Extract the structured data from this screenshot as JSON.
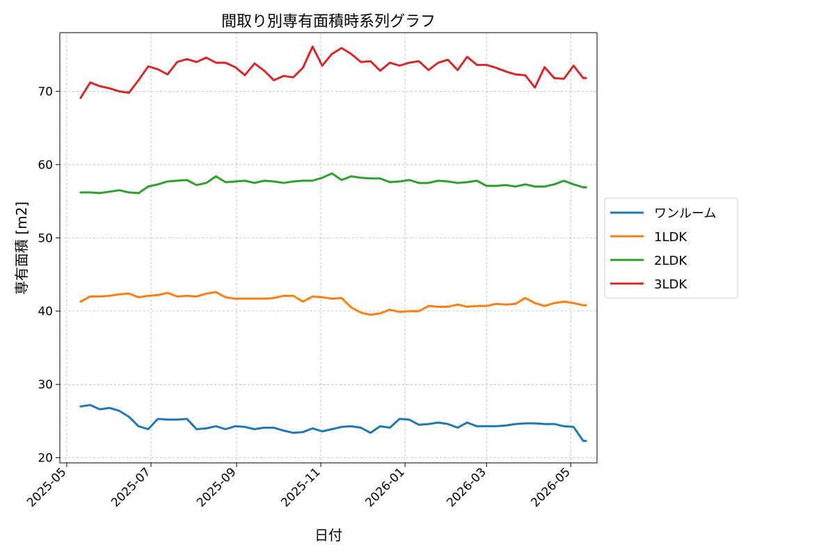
{
  "chart_data": {
    "type": "line",
    "title": "間取り別専有面積時系列グラフ",
    "xlabel": "日付",
    "ylabel": "専有面積 [m2]",
    "ylim": [
      19.3,
      78.0
    ],
    "yticks": [
      20,
      30,
      40,
      50,
      60,
      70
    ],
    "xlim": [
      "2025-04-26",
      "2026-05-20"
    ],
    "xticks": [
      "2025-05-01",
      "2025-07-01",
      "2025-09-01",
      "2025-11-01",
      "2026-01-01",
      "2026-03-01",
      "2026-05-01"
    ],
    "xtick_labels": [
      "2025-05",
      "2025-07",
      "2025-09",
      "2025-11",
      "2026-01",
      "2026-03",
      "2026-05"
    ],
    "grid": true,
    "legend_position": "right-outside",
    "x": [
      "2025-05-11",
      "2025-05-18",
      "2025-05-25",
      "2025-06-01",
      "2025-06-08",
      "2025-06-15",
      "2025-06-22",
      "2025-06-29",
      "2025-07-06",
      "2025-07-13",
      "2025-07-20",
      "2025-07-27",
      "2025-08-03",
      "2025-08-10",
      "2025-08-17",
      "2025-08-24",
      "2025-08-31",
      "2025-09-07",
      "2025-09-14",
      "2025-09-21",
      "2025-09-28",
      "2025-10-05",
      "2025-10-12",
      "2025-10-19",
      "2025-10-26",
      "2025-11-02",
      "2025-11-09",
      "2025-11-16",
      "2025-11-23",
      "2025-11-30",
      "2025-12-07",
      "2025-12-14",
      "2025-12-21",
      "2025-12-28",
      "2026-01-04",
      "2026-01-11",
      "2026-01-18",
      "2026-01-25",
      "2026-02-01",
      "2026-02-08",
      "2026-02-15",
      "2026-02-22",
      "2026-03-01",
      "2026-03-08",
      "2026-03-15",
      "2026-03-22",
      "2026-03-29",
      "2026-04-05",
      "2026-04-12",
      "2026-04-19",
      "2026-04-26",
      "2026-05-03",
      "2026-05-10",
      "2026-05-12"
    ],
    "series": [
      {
        "name": "ワンルーム",
        "color": "#1f77b4",
        "values": [
          27.0,
          27.2,
          26.6,
          26.8,
          26.4,
          25.6,
          24.3,
          23.9,
          25.3,
          25.2,
          25.2,
          25.3,
          23.9,
          24.0,
          24.3,
          23.9,
          24.3,
          24.2,
          23.9,
          24.1,
          24.1,
          23.7,
          23.4,
          23.5,
          24.0,
          23.6,
          23.9,
          24.2,
          24.3,
          24.1,
          23.4,
          24.3,
          24.1,
          25.3,
          25.2,
          24.5,
          24.6,
          24.8,
          24.6,
          24.1,
          24.8,
          24.3,
          24.3,
          24.3,
          24.4,
          24.6,
          24.7,
          24.7,
          24.6,
          24.6,
          24.3,
          24.2,
          22.3,
          22.3
        ]
      },
      {
        "name": "1LDK",
        "color": "#ff7f0e",
        "values": [
          41.3,
          42.0,
          42.0,
          42.1,
          42.3,
          42.4,
          41.9,
          42.1,
          42.2,
          42.5,
          42.0,
          42.1,
          42.0,
          42.4,
          42.6,
          41.9,
          41.7,
          41.7,
          41.7,
          41.7,
          41.8,
          42.1,
          42.1,
          41.3,
          42.0,
          41.9,
          41.7,
          41.8,
          40.5,
          39.8,
          39.5,
          39.7,
          40.2,
          39.9,
          40.0,
          40.0,
          40.7,
          40.6,
          40.6,
          40.9,
          40.6,
          40.7,
          40.7,
          41.0,
          40.9,
          41.0,
          41.8,
          41.1,
          40.7,
          41.1,
          41.3,
          41.1,
          40.8,
          40.8
        ]
      },
      {
        "name": "2LDK",
        "color": "#2ca02c",
        "values": [
          56.2,
          56.2,
          56.1,
          56.3,
          56.5,
          56.2,
          56.1,
          57.0,
          57.3,
          57.7,
          57.8,
          57.9,
          57.2,
          57.5,
          58.4,
          57.6,
          57.7,
          57.8,
          57.5,
          57.8,
          57.7,
          57.5,
          57.7,
          57.8,
          57.8,
          58.2,
          58.8,
          57.9,
          58.4,
          58.2,
          58.1,
          58.1,
          57.6,
          57.7,
          57.9,
          57.5,
          57.5,
          57.8,
          57.7,
          57.5,
          57.6,
          57.8,
          57.1,
          57.1,
          57.2,
          57.0,
          57.3,
          57.0,
          57.0,
          57.3,
          57.8,
          57.3,
          56.9,
          56.9
        ]
      },
      {
        "name": "3LDK",
        "color": "#d62728",
        "values": [
          69.1,
          71.2,
          70.7,
          70.4,
          70.0,
          69.8,
          71.5,
          73.4,
          73.0,
          72.3,
          74.0,
          74.4,
          74.0,
          74.6,
          73.9,
          73.9,
          73.3,
          72.2,
          73.8,
          72.8,
          71.5,
          72.1,
          71.9,
          73.2,
          76.1,
          73.5,
          75.1,
          75.9,
          75.1,
          74.0,
          74.1,
          72.8,
          73.9,
          73.5,
          73.9,
          74.1,
          72.9,
          73.9,
          74.3,
          72.9,
          74.7,
          73.6,
          73.6,
          73.2,
          72.7,
          72.3,
          72.2,
          70.5,
          73.3,
          71.8,
          71.7,
          73.5,
          71.8,
          71.8
        ]
      }
    ]
  }
}
